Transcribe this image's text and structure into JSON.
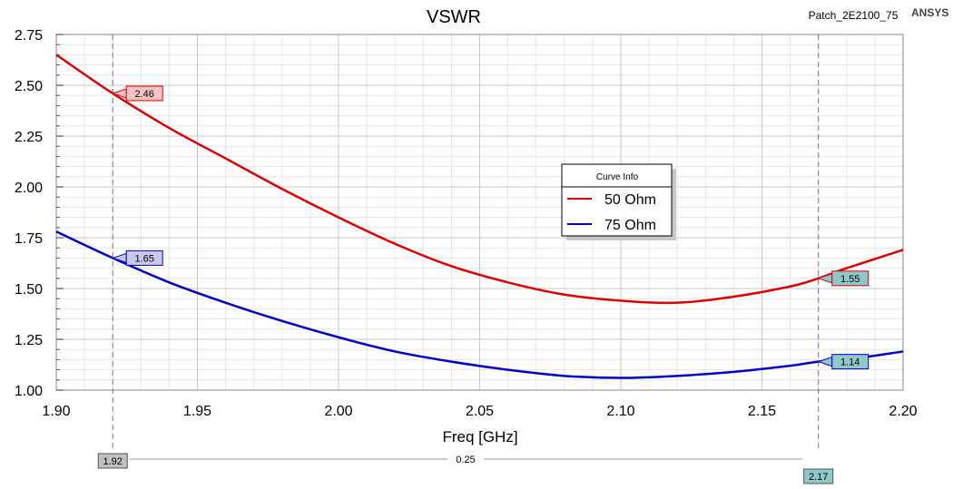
{
  "header": {
    "title": "VSWR",
    "project": "Patch_2E2100_75",
    "brand": "ANSYS"
  },
  "legend": {
    "title": "Curve Info"
  },
  "colors": {
    "series_50": "#e00000",
    "series_75": "#0000cc",
    "grid_major": "#c8c8c8",
    "grid_minor": "#e6e6e6",
    "marker_gray": "#c0c0c0",
    "marker_teal": "#8fc8c8",
    "label_red": "#f4c4c4",
    "label_blue": "#c8c8f0"
  },
  "chart_data": {
    "type": "line",
    "title": "VSWR",
    "xlabel": "Freq [GHz]",
    "ylabel": "",
    "xlim": [
      1.9,
      2.2
    ],
    "ylim": [
      1.0,
      2.75
    ],
    "xticks": [
      "1.90",
      "1.95",
      "2.00",
      "2.05",
      "2.10",
      "2.15",
      "2.20"
    ],
    "yticks": [
      "1.00",
      "1.25",
      "1.50",
      "1.75",
      "2.00",
      "2.25",
      "2.50",
      "2.75"
    ],
    "grid": true,
    "legend_position": "center-right",
    "series": [
      {
        "name": "50 Ohm",
        "color": "#e00000",
        "x": [
          1.9,
          1.92,
          1.94,
          1.96,
          1.98,
          2.0,
          2.02,
          2.04,
          2.06,
          2.08,
          2.1,
          2.12,
          2.14,
          2.16,
          2.17,
          2.18,
          2.2
        ],
        "y": [
          2.65,
          2.46,
          2.29,
          2.14,
          1.99,
          1.85,
          1.72,
          1.61,
          1.53,
          1.47,
          1.44,
          1.43,
          1.46,
          1.51,
          1.55,
          1.6,
          1.69
        ]
      },
      {
        "name": "75 Ohm",
        "color": "#0000cc",
        "x": [
          1.9,
          1.92,
          1.94,
          1.96,
          1.98,
          2.0,
          2.02,
          2.04,
          2.06,
          2.08,
          2.1,
          2.12,
          2.14,
          2.16,
          2.17,
          2.18,
          2.2
        ],
        "y": [
          1.78,
          1.65,
          1.53,
          1.43,
          1.34,
          1.26,
          1.19,
          1.14,
          1.1,
          1.07,
          1.06,
          1.07,
          1.09,
          1.12,
          1.14,
          1.15,
          1.19
        ]
      }
    ],
    "markers": [
      {
        "x": 1.92,
        "label": "1.92",
        "values": [
          {
            "series": "50 Ohm",
            "y": 2.46,
            "label": "2.46"
          },
          {
            "series": "75 Ohm",
            "y": 1.65,
            "label": "1.65"
          }
        ]
      },
      {
        "x": 2.17,
        "label": "2.17",
        "values": [
          {
            "series": "50 Ohm",
            "y": 1.55,
            "label": "1.55"
          },
          {
            "series": "75 Ohm",
            "y": 1.14,
            "label": "1.14"
          }
        ]
      }
    ],
    "delta_label": "0.25"
  }
}
